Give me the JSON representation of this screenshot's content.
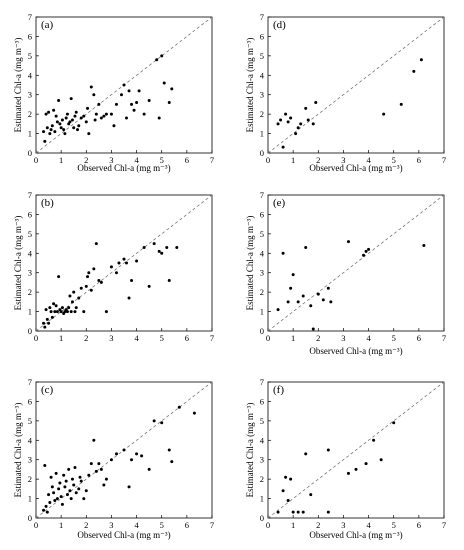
{
  "chart_data": [
    {
      "type": "scatter",
      "panel_label": "(a)",
      "xlabel": "Observed Chl-a (mg m⁻³)",
      "ylabel": "Estimated Chl-a (mg m⁻³)",
      "xlim": [
        0,
        7
      ],
      "ylim": [
        0,
        7
      ],
      "xticks": [
        "0",
        "1",
        "2",
        "3",
        "4",
        "5",
        "6",
        "7"
      ],
      "yticks": [
        "0",
        "1",
        "2",
        "3",
        "4",
        "5",
        "6",
        "7"
      ],
      "reference_line": "1:1 dashed",
      "points": [
        [
          0.3,
          1.1
        ],
        [
          0.35,
          0.6
        ],
        [
          0.4,
          2.0
        ],
        [
          0.45,
          1.3
        ],
        [
          0.5,
          2.1
        ],
        [
          0.55,
          1.0
        ],
        [
          0.6,
          1.2
        ],
        [
          0.65,
          1.4
        ],
        [
          0.7,
          2.2
        ],
        [
          0.75,
          1.1
        ],
        [
          0.8,
          1.9
        ],
        [
          0.85,
          1.6
        ],
        [
          0.9,
          2.7
        ],
        [
          0.95,
          1.5
        ],
        [
          1.0,
          1.3
        ],
        [
          1.05,
          1.7
        ],
        [
          1.1,
          1.2
        ],
        [
          1.15,
          1.0
        ],
        [
          1.2,
          1.8
        ],
        [
          1.25,
          2.0
        ],
        [
          1.3,
          1.5
        ],
        [
          1.35,
          1.6
        ],
        [
          1.4,
          2.8
        ],
        [
          1.45,
          1.7
        ],
        [
          1.5,
          1.3
        ],
        [
          1.55,
          1.9
        ],
        [
          1.6,
          2.1
        ],
        [
          1.65,
          1.2
        ],
        [
          1.7,
          1.4
        ],
        [
          1.8,
          1.8
        ],
        [
          1.9,
          1.9
        ],
        [
          2.0,
          1.6
        ],
        [
          2.05,
          2.3
        ],
        [
          2.1,
          1.0
        ],
        [
          2.2,
          3.4
        ],
        [
          2.3,
          3.0
        ],
        [
          2.35,
          1.7
        ],
        [
          2.4,
          2.0
        ],
        [
          2.5,
          2.5
        ],
        [
          2.6,
          1.8
        ],
        [
          2.7,
          1.9
        ],
        [
          2.8,
          2.0
        ],
        [
          3.0,
          2.0
        ],
        [
          3.1,
          1.4
        ],
        [
          3.2,
          2.5
        ],
        [
          3.4,
          3.0
        ],
        [
          3.5,
          3.5
        ],
        [
          3.6,
          1.8
        ],
        [
          3.7,
          3.2
        ],
        [
          3.8,
          2.5
        ],
        [
          3.9,
          2.2
        ],
        [
          4.0,
          2.6
        ],
        [
          4.1,
          3.2
        ],
        [
          4.3,
          2.0
        ],
        [
          4.5,
          2.7
        ],
        [
          4.8,
          4.8
        ],
        [
          4.9,
          1.8
        ],
        [
          5.0,
          5.0
        ],
        [
          5.1,
          3.6
        ],
        [
          5.3,
          2.6
        ],
        [
          5.4,
          3.3
        ]
      ]
    },
    {
      "type": "scatter",
      "panel_label": "(b)",
      "xlabel": "",
      "ylabel": "Estimated Chl-a (mg m⁻³)",
      "xlim": [
        0,
        7
      ],
      "ylim": [
        0,
        7
      ],
      "xticks": [
        "0",
        "1",
        "2",
        "3",
        "4",
        "5",
        "6",
        "7"
      ],
      "yticks": [
        "0",
        "1",
        "2",
        "3",
        "4",
        "5",
        "6",
        "7"
      ],
      "reference_line": "1:1 dashed",
      "points": [
        [
          0.3,
          0.4
        ],
        [
          0.35,
          0.2
        ],
        [
          0.4,
          1.1
        ],
        [
          0.45,
          0.6
        ],
        [
          0.5,
          0.4
        ],
        [
          0.55,
          1.2
        ],
        [
          0.6,
          1.0
        ],
        [
          0.65,
          0.7
        ],
        [
          0.7,
          1.4
        ],
        [
          0.75,
          1.0
        ],
        [
          0.8,
          1.3
        ],
        [
          0.85,
          1.0
        ],
        [
          0.9,
          2.8
        ],
        [
          0.95,
          1.1
        ],
        [
          1.0,
          1.0
        ],
        [
          1.05,
          1.2
        ],
        [
          1.1,
          0.9
        ],
        [
          1.15,
          1.0
        ],
        [
          1.2,
          1.1
        ],
        [
          1.25,
          1.0
        ],
        [
          1.3,
          1.2
        ],
        [
          1.35,
          1.8
        ],
        [
          1.4,
          1.0
        ],
        [
          1.45,
          1.5
        ],
        [
          1.5,
          2.0
        ],
        [
          1.55,
          1.0
        ],
        [
          1.6,
          1.2
        ],
        [
          1.7,
          1.7
        ],
        [
          1.8,
          2.2
        ],
        [
          1.9,
          1.0
        ],
        [
          2.0,
          2.3
        ],
        [
          2.05,
          2.8
        ],
        [
          2.1,
          3.0
        ],
        [
          2.2,
          2.1
        ],
        [
          2.3,
          3.2
        ],
        [
          2.4,
          4.5
        ],
        [
          2.5,
          2.6
        ],
        [
          2.6,
          2.5
        ],
        [
          2.8,
          1.0
        ],
        [
          3.0,
          3.3
        ],
        [
          3.2,
          3.0
        ],
        [
          3.3,
          3.5
        ],
        [
          3.5,
          3.7
        ],
        [
          3.6,
          3.5
        ],
        [
          3.7,
          1.7
        ],
        [
          3.8,
          2.6
        ],
        [
          4.0,
          3.6
        ],
        [
          4.3,
          4.3
        ],
        [
          4.5,
          2.3
        ],
        [
          4.7,
          4.5
        ],
        [
          4.9,
          4.1
        ],
        [
          5.0,
          4.0
        ],
        [
          5.2,
          4.3
        ],
        [
          5.3,
          2.6
        ],
        [
          5.6,
          4.3
        ]
      ]
    },
    {
      "type": "scatter",
      "panel_label": "(c)",
      "xlabel": "Observed Chl-a (mg m⁻³)",
      "ylabel": "Estimated Chl-a (mg m⁻³)",
      "xlim": [
        0,
        7
      ],
      "ylim": [
        0,
        7
      ],
      "xticks": [
        "0",
        "1",
        "2",
        "3",
        "4",
        "5",
        "6",
        "7"
      ],
      "yticks": [
        "0",
        "1",
        "2",
        "3",
        "4",
        "5",
        "6",
        "7"
      ],
      "reference_line": "1:1 dashed",
      "points": [
        [
          0.3,
          0.4
        ],
        [
          0.35,
          2.7
        ],
        [
          0.4,
          0.6
        ],
        [
          0.45,
          0.3
        ],
        [
          0.5,
          1.2
        ],
        [
          0.55,
          0.8
        ],
        [
          0.6,
          2.1
        ],
        [
          0.65,
          1.6
        ],
        [
          0.7,
          1.3
        ],
        [
          0.75,
          0.9
        ],
        [
          0.8,
          2.3
        ],
        [
          0.85,
          1.0
        ],
        [
          0.9,
          1.5
        ],
        [
          0.95,
          1.8
        ],
        [
          1.0,
          1.1
        ],
        [
          1.05,
          0.7
        ],
        [
          1.1,
          2.2
        ],
        [
          1.15,
          1.6
        ],
        [
          1.2,
          1.9
        ],
        [
          1.25,
          1.2
        ],
        [
          1.3,
          2.5
        ],
        [
          1.35,
          1.4
        ],
        [
          1.4,
          1.0
        ],
        [
          1.45,
          2.0
        ],
        [
          1.5,
          1.7
        ],
        [
          1.55,
          2.6
        ],
        [
          1.6,
          1.3
        ],
        [
          1.7,
          1.5
        ],
        [
          1.75,
          2.1
        ],
        [
          1.8,
          1.9
        ],
        [
          1.9,
          1.0
        ],
        [
          2.0,
          1.4
        ],
        [
          2.1,
          2.2
        ],
        [
          2.2,
          2.8
        ],
        [
          2.3,
          4.0
        ],
        [
          2.4,
          2.4
        ],
        [
          2.5,
          2.8
        ],
        [
          2.6,
          2.5
        ],
        [
          2.7,
          1.7
        ],
        [
          2.8,
          2.0
        ],
        [
          3.0,
          3.0
        ],
        [
          3.2,
          3.3
        ],
        [
          3.5,
          3.5
        ],
        [
          3.7,
          1.6
        ],
        [
          3.8,
          3.0
        ],
        [
          4.0,
          3.3
        ],
        [
          4.2,
          3.2
        ],
        [
          4.5,
          2.5
        ],
        [
          4.7,
          5.0
        ],
        [
          5.0,
          4.9
        ],
        [
          5.3,
          3.5
        ],
        [
          5.4,
          2.9
        ],
        [
          5.7,
          5.7
        ],
        [
          6.3,
          5.4
        ]
      ]
    },
    {
      "type": "scatter",
      "panel_label": "(d)",
      "xlabel": "Observed Chl-a (mg m⁻³)",
      "ylabel": "Estimated Chl-a (mg m⁻³)",
      "xlim": [
        0,
        7
      ],
      "ylim": [
        0,
        7
      ],
      "xticks": [
        "0",
        "1",
        "2",
        "3",
        "4",
        "5",
        "6",
        "7"
      ],
      "yticks": [
        "0",
        "1",
        "2",
        "3",
        "4",
        "5",
        "6",
        "7"
      ],
      "reference_line": "1:1 dashed",
      "points": [
        [
          0.4,
          1.5
        ],
        [
          0.5,
          1.7
        ],
        [
          0.6,
          0.3
        ],
        [
          0.7,
          2.0
        ],
        [
          0.8,
          1.6
        ],
        [
          0.9,
          1.8
        ],
        [
          1.1,
          1.0
        ],
        [
          1.2,
          1.3
        ],
        [
          1.3,
          1.5
        ],
        [
          1.5,
          2.3
        ],
        [
          1.6,
          1.7
        ],
        [
          1.8,
          1.5
        ],
        [
          1.9,
          2.6
        ],
        [
          4.6,
          2.0
        ],
        [
          5.3,
          2.5
        ],
        [
          5.8,
          4.2
        ],
        [
          6.1,
          4.8
        ]
      ]
    },
    {
      "type": "scatter",
      "panel_label": "(e)",
      "xlabel": "Observed Chl-a (mg m⁻³)",
      "ylabel": "Estimated Chl-a (mg m⁻³)",
      "xlim": [
        0,
        7
      ],
      "ylim": [
        0,
        7
      ],
      "xticks": [
        "0",
        "1",
        "2",
        "3",
        "4",
        "5",
        "6",
        "7"
      ],
      "yticks": [
        "0",
        "1",
        "2",
        "3",
        "4",
        "5",
        "6",
        "7"
      ],
      "reference_line": "1:1 dashed",
      "points": [
        [
          0.4,
          1.1
        ],
        [
          0.6,
          4.0
        ],
        [
          0.8,
          1.5
        ],
        [
          0.9,
          2.2
        ],
        [
          1.0,
          2.9
        ],
        [
          1.2,
          1.5
        ],
        [
          1.4,
          1.8
        ],
        [
          1.5,
          4.3
        ],
        [
          1.7,
          1.3
        ],
        [
          1.8,
          0.1
        ],
        [
          2.0,
          1.9
        ],
        [
          2.2,
          1.6
        ],
        [
          2.4,
          2.2
        ],
        [
          2.5,
          1.5
        ],
        [
          3.2,
          4.6
        ],
        [
          3.8,
          3.9
        ],
        [
          3.9,
          4.1
        ],
        [
          4.0,
          4.2
        ],
        [
          6.2,
          4.4
        ]
      ]
    },
    {
      "type": "scatter",
      "panel_label": "(f)",
      "xlabel": "Observed Chl-a (mg m⁻³)",
      "ylabel": "Estimated Chl-a (mg m⁻³)",
      "xlim": [
        0,
        7
      ],
      "ylim": [
        0,
        7
      ],
      "xticks": [
        "0",
        "1",
        "2",
        "3",
        "4",
        "5",
        "6",
        "7"
      ],
      "yticks": [
        "0",
        "1",
        "2",
        "3",
        "4",
        "5",
        "6",
        "7"
      ],
      "reference_line": "1:1 dashed",
      "points": [
        [
          0.4,
          0.3
        ],
        [
          0.6,
          1.4
        ],
        [
          0.7,
          2.1
        ],
        [
          0.8,
          0.9
        ],
        [
          0.9,
          2.0
        ],
        [
          1.0,
          0.3
        ],
        [
          1.2,
          0.3
        ],
        [
          1.4,
          0.3
        ],
        [
          1.5,
          3.3
        ],
        [
          1.7,
          1.2
        ],
        [
          2.4,
          3.5
        ],
        [
          2.4,
          0.3
        ],
        [
          3.2,
          2.3
        ],
        [
          3.5,
          2.5
        ],
        [
          3.9,
          2.8
        ],
        [
          4.2,
          4.0
        ],
        [
          4.5,
          3.0
        ],
        [
          5.0,
          4.9
        ]
      ]
    }
  ]
}
